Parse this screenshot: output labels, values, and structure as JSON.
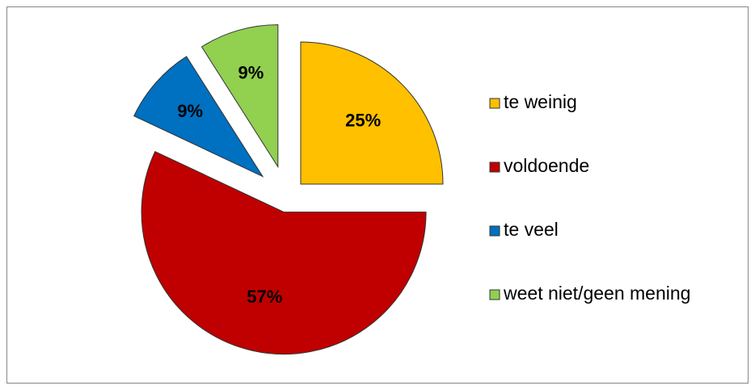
{
  "chart_data": {
    "type": "pie",
    "categories": [
      "te weinig",
      "voldoende",
      "te veel",
      "weet niet/geen mening"
    ],
    "values": [
      25,
      57,
      9,
      9
    ],
    "value_labels": [
      "25%",
      "57%",
      "9%",
      "9%"
    ],
    "colors": [
      "#ffc000",
      "#c00000",
      "#0070c0",
      "#92d050"
    ],
    "legend": "right"
  }
}
